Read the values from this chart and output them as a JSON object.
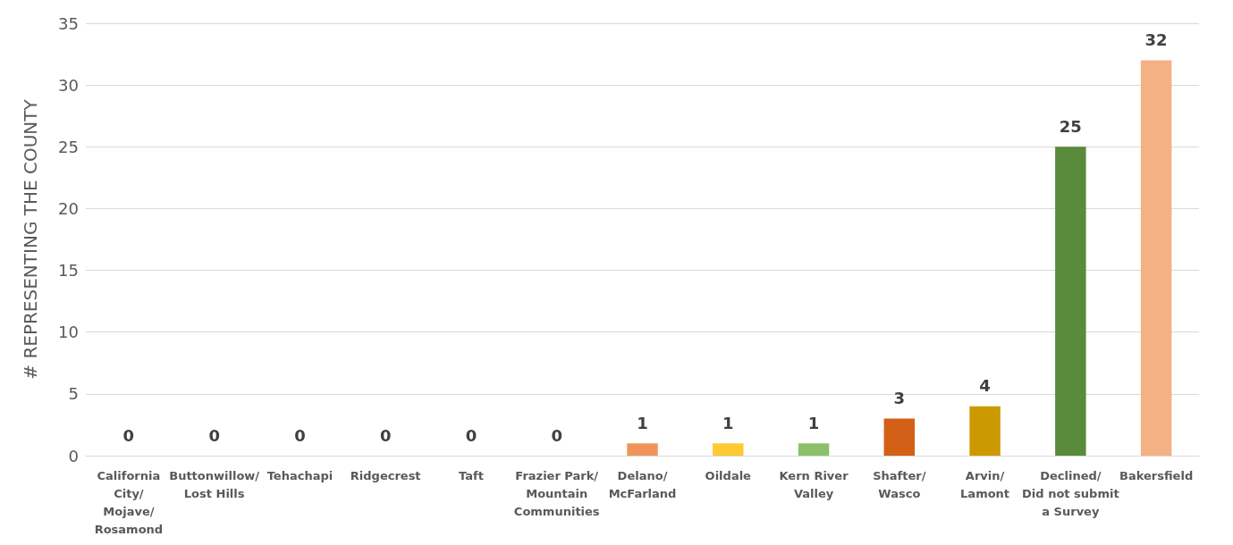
{
  "chart_data": {
    "type": "bar",
    "ylabel": "# REPRESENTING THE COUNTY",
    "categories": [
      "California\nCity/\nMojave/\nRosamond",
      "Buttonwillow/\nLost Hills",
      "Tehachapi",
      "Ridgecrest",
      "Taft",
      "Frazier Park/\nMountain\nCommunities",
      "Delano/\nMcFarland",
      "Oildale",
      "Kern River\nValley",
      "Shafter/\nWasco",
      "Arvin/\nLamont",
      "Declined/\nDid not submit\na Survey",
      "Bakersfield"
    ],
    "values": [
      0,
      0,
      0,
      0,
      0,
      0,
      1,
      1,
      1,
      3,
      4,
      25,
      32
    ],
    "colors": [
      "#f0955a",
      "#f0955a",
      "#f0955a",
      "#f0955a",
      "#f0955a",
      "#f0955a",
      "#f0955a",
      "#ffc933",
      "#8cc16a",
      "#d45f16",
      "#cc9900",
      "#5a8a3c",
      "#f4b183"
    ],
    "ylim": [
      0,
      35
    ],
    "yticks": [
      0,
      5,
      10,
      15,
      20,
      25,
      30,
      35
    ],
    "grid": "y",
    "data_labels": true
  }
}
